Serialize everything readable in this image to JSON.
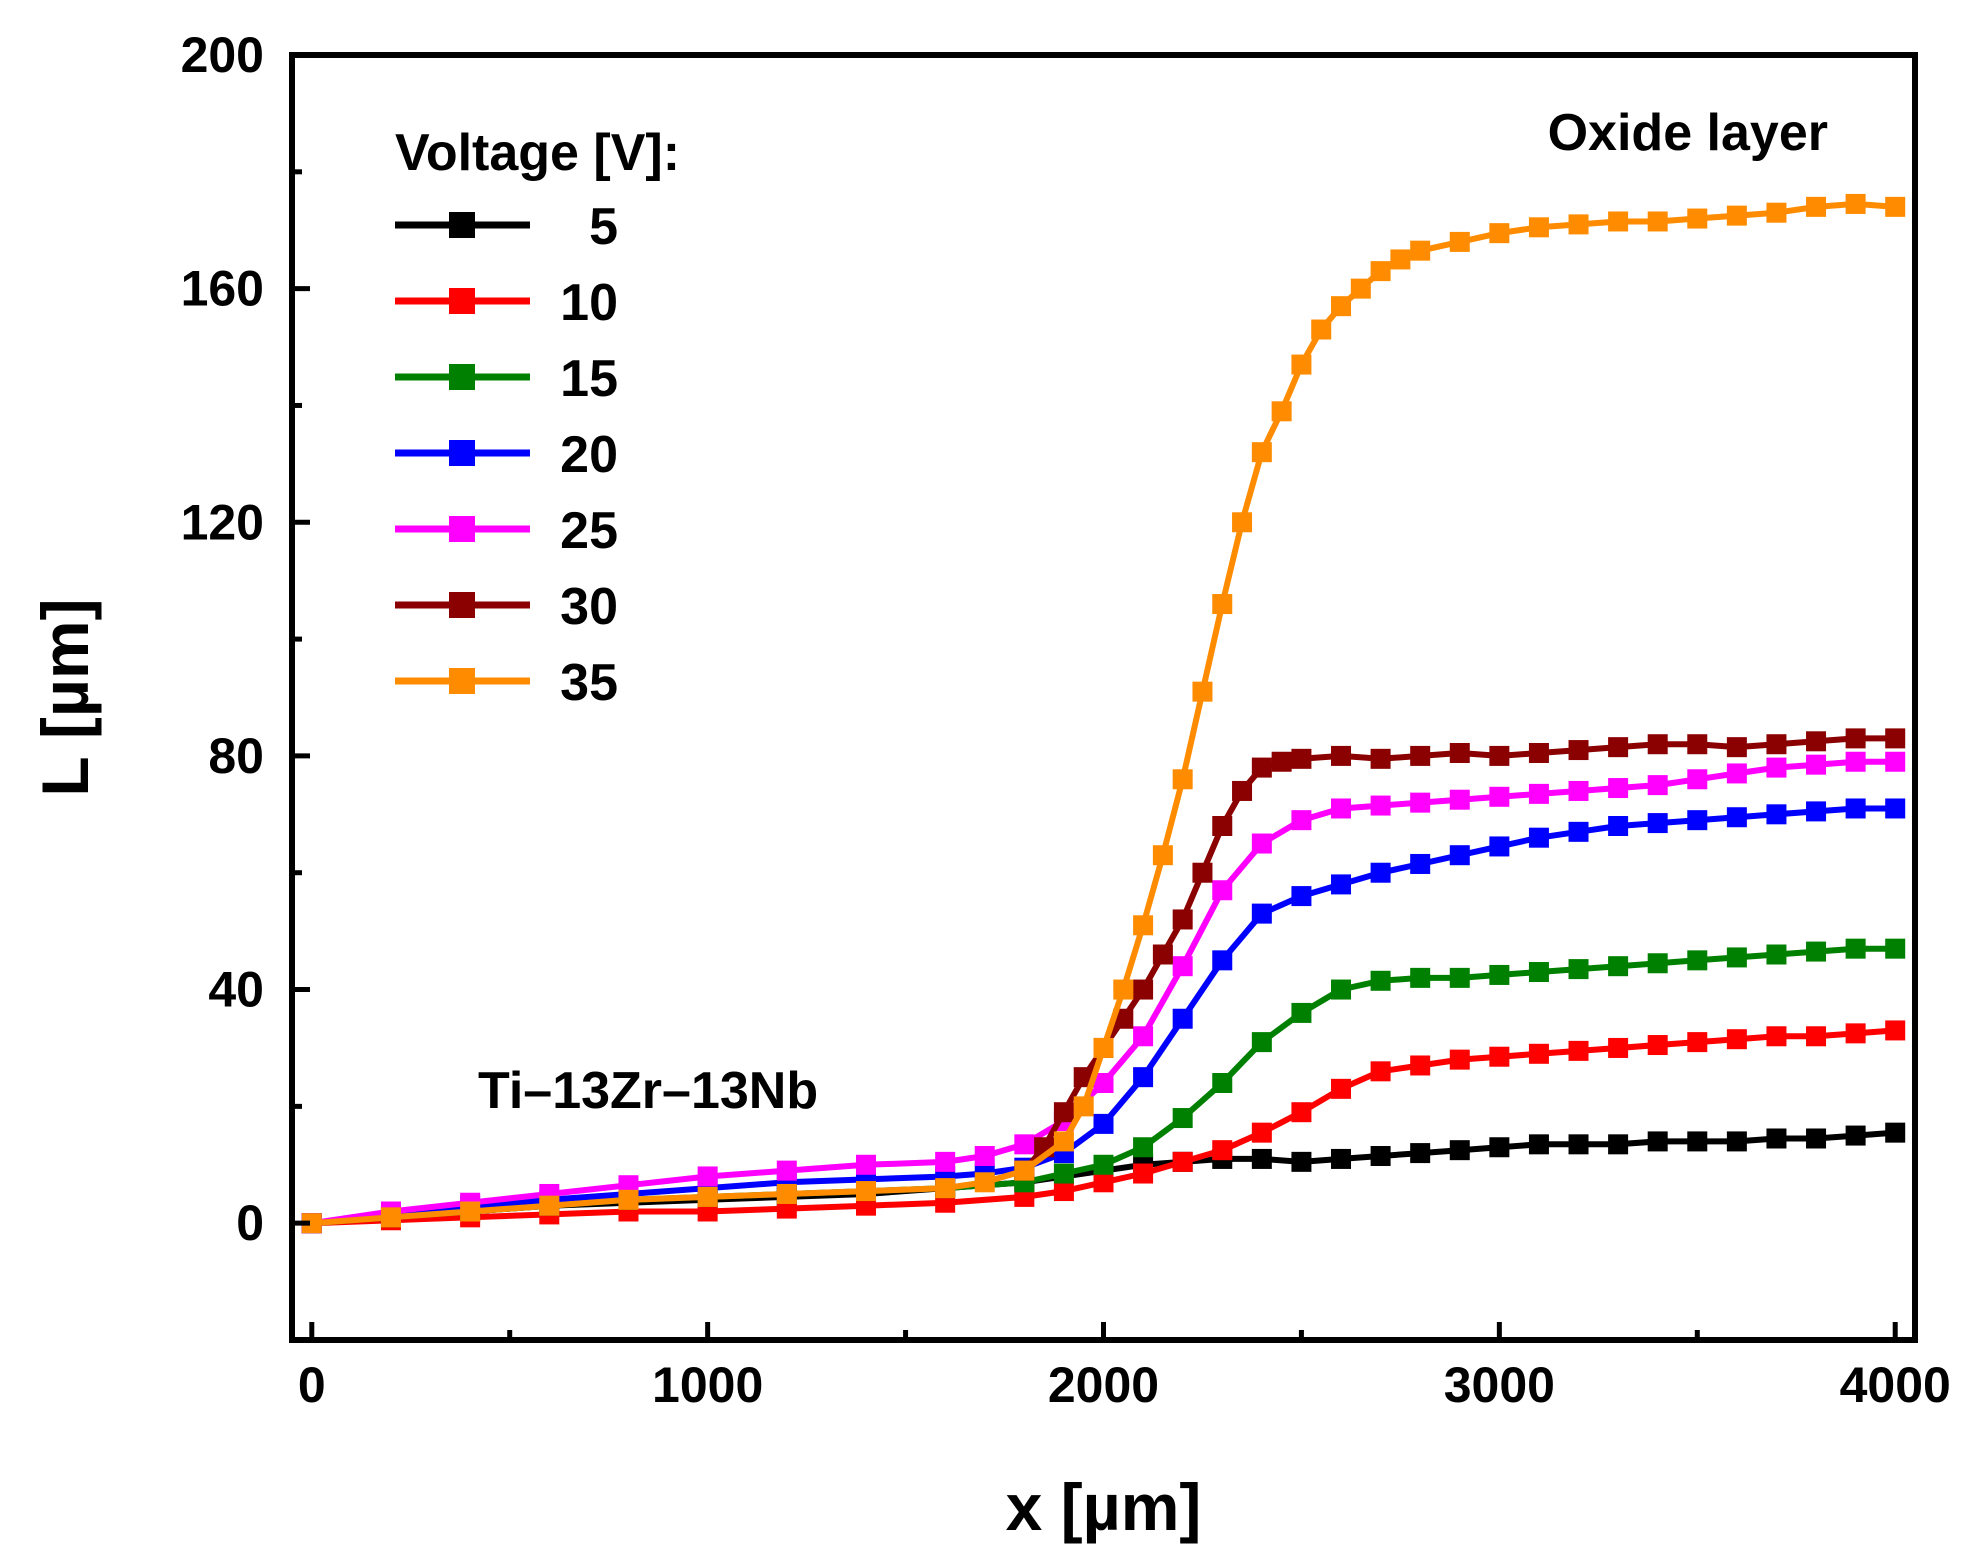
{
  "chart_data": {
    "type": "line",
    "title": "",
    "xlabel": "x [µm]",
    "ylabel": "L [µm]",
    "xlim": [
      -50,
      4050
    ],
    "ylim": [
      -20,
      200
    ],
    "xticks": [
      0,
      1000,
      2000,
      3000,
      4000
    ],
    "yticks": [
      0,
      40,
      80,
      120,
      160,
      200
    ],
    "grid": false,
    "legend": {
      "title": "Voltage [V]:",
      "placement": "top-left"
    },
    "annotations": {
      "top_right": "Oxide layer",
      "bottom_left": "Ti–13Zr–13Nb"
    },
    "series": [
      {
        "name": "5",
        "label": "5",
        "color": "#000000",
        "points": [
          [
            0,
            0
          ],
          [
            200,
            1
          ],
          [
            400,
            2
          ],
          [
            600,
            3
          ],
          [
            800,
            3.5
          ],
          [
            1000,
            4
          ],
          [
            1200,
            4.5
          ],
          [
            1400,
            5
          ],
          [
            1600,
            6
          ],
          [
            1800,
            7
          ],
          [
            2000,
            9
          ],
          [
            2100,
            10
          ],
          [
            2200,
            10.5
          ],
          [
            2300,
            11
          ],
          [
            2400,
            11
          ],
          [
            2500,
            10.5
          ],
          [
            2600,
            11
          ],
          [
            2700,
            11.5
          ],
          [
            2800,
            12
          ],
          [
            2900,
            12.5
          ],
          [
            3000,
            13
          ],
          [
            3100,
            13.5
          ],
          [
            3200,
            13.5
          ],
          [
            3300,
            13.5
          ],
          [
            3400,
            14
          ],
          [
            3500,
            14
          ],
          [
            3600,
            14
          ],
          [
            3700,
            14.5
          ],
          [
            3800,
            14.5
          ],
          [
            3900,
            15
          ],
          [
            4000,
            15.5
          ]
        ]
      },
      {
        "name": "10",
        "label": "10",
        "color": "#ff0000",
        "points": [
          [
            0,
            0
          ],
          [
            200,
            0.5
          ],
          [
            400,
            1
          ],
          [
            600,
            1.5
          ],
          [
            800,
            2
          ],
          [
            1000,
            2
          ],
          [
            1200,
            2.5
          ],
          [
            1400,
            3
          ],
          [
            1600,
            3.5
          ],
          [
            1800,
            4.5
          ],
          [
            1900,
            5.5
          ],
          [
            2000,
            7
          ],
          [
            2100,
            8.5
          ],
          [
            2200,
            10.5
          ],
          [
            2300,
            12.5
          ],
          [
            2400,
            15.5
          ],
          [
            2500,
            19
          ],
          [
            2600,
            23
          ],
          [
            2700,
            26
          ],
          [
            2800,
            27
          ],
          [
            2900,
            28
          ],
          [
            3000,
            28.5
          ],
          [
            3100,
            29
          ],
          [
            3200,
            29.5
          ],
          [
            3300,
            30
          ],
          [
            3400,
            30.5
          ],
          [
            3500,
            31
          ],
          [
            3600,
            31.5
          ],
          [
            3700,
            32
          ],
          [
            3800,
            32
          ],
          [
            3900,
            32.5
          ],
          [
            4000,
            33
          ]
        ]
      },
      {
        "name": "15",
        "label": "15",
        "color": "#008000",
        "points": [
          [
            0,
            0
          ],
          [
            200,
            1
          ],
          [
            400,
            2
          ],
          [
            600,
            3
          ],
          [
            800,
            4
          ],
          [
            1000,
            4.5
          ],
          [
            1200,
            5
          ],
          [
            1400,
            5.5
          ],
          [
            1600,
            6
          ],
          [
            1800,
            7
          ],
          [
            1900,
            8.5
          ],
          [
            2000,
            10
          ],
          [
            2100,
            13
          ],
          [
            2200,
            18
          ],
          [
            2300,
            24
          ],
          [
            2400,
            31
          ],
          [
            2500,
            36
          ],
          [
            2600,
            40
          ],
          [
            2700,
            41.5
          ],
          [
            2800,
            42
          ],
          [
            2900,
            42
          ],
          [
            3000,
            42.5
          ],
          [
            3100,
            43
          ],
          [
            3200,
            43.5
          ],
          [
            3300,
            44
          ],
          [
            3400,
            44.5
          ],
          [
            3500,
            45
          ],
          [
            3600,
            45.5
          ],
          [
            3700,
            46
          ],
          [
            3800,
            46.5
          ],
          [
            3900,
            47
          ],
          [
            4000,
            47
          ]
        ]
      },
      {
        "name": "20",
        "label": "20",
        "color": "#0000ff",
        "points": [
          [
            0,
            0
          ],
          [
            200,
            1.5
          ],
          [
            400,
            3
          ],
          [
            600,
            4
          ],
          [
            800,
            5
          ],
          [
            1000,
            6
          ],
          [
            1200,
            7
          ],
          [
            1400,
            7.5
          ],
          [
            1600,
            8
          ],
          [
            1700,
            8.5
          ],
          [
            1800,
            9.5
          ],
          [
            1900,
            12
          ],
          [
            2000,
            17
          ],
          [
            2100,
            25
          ],
          [
            2200,
            35
          ],
          [
            2300,
            45
          ],
          [
            2400,
            53
          ],
          [
            2500,
            56
          ],
          [
            2600,
            58
          ],
          [
            2700,
            60
          ],
          [
            2800,
            61.5
          ],
          [
            2900,
            63
          ],
          [
            3000,
            64.5
          ],
          [
            3100,
            66
          ],
          [
            3200,
            67
          ],
          [
            3300,
            68
          ],
          [
            3400,
            68.5
          ],
          [
            3500,
            69
          ],
          [
            3600,
            69.5
          ],
          [
            3700,
            70
          ],
          [
            3800,
            70.5
          ],
          [
            3900,
            71
          ],
          [
            4000,
            71
          ]
        ]
      },
      {
        "name": "25",
        "label": "25",
        "color": "#ff00ff",
        "points": [
          [
            0,
            0
          ],
          [
            200,
            2
          ],
          [
            400,
            3.5
          ],
          [
            600,
            5
          ],
          [
            800,
            6.5
          ],
          [
            1000,
            8
          ],
          [
            1200,
            9
          ],
          [
            1400,
            10
          ],
          [
            1600,
            10.5
          ],
          [
            1700,
            11.5
          ],
          [
            1800,
            13.5
          ],
          [
            1900,
            17.5
          ],
          [
            2000,
            24
          ],
          [
            2100,
            32
          ],
          [
            2200,
            44
          ],
          [
            2300,
            57
          ],
          [
            2400,
            65
          ],
          [
            2500,
            69
          ],
          [
            2600,
            71
          ],
          [
            2700,
            71.5
          ],
          [
            2800,
            72
          ],
          [
            2900,
            72.5
          ],
          [
            3000,
            73
          ],
          [
            3100,
            73.5
          ],
          [
            3200,
            74
          ],
          [
            3300,
            74.5
          ],
          [
            3400,
            75
          ],
          [
            3500,
            76
          ],
          [
            3600,
            77
          ],
          [
            3700,
            78
          ],
          [
            3800,
            78.5
          ],
          [
            3900,
            79
          ],
          [
            4000,
            79
          ]
        ]
      },
      {
        "name": "30",
        "label": "30",
        "color": "#8b0000",
        "points": [
          [
            1800,
            9
          ],
          [
            1850,
            13
          ],
          [
            1900,
            19
          ],
          [
            1950,
            25
          ],
          [
            2000,
            30
          ],
          [
            2050,
            35
          ],
          [
            2100,
            40
          ],
          [
            2150,
            46
          ],
          [
            2200,
            52
          ],
          [
            2250,
            60
          ],
          [
            2300,
            68
          ],
          [
            2350,
            74
          ],
          [
            2400,
            78
          ],
          [
            2450,
            79
          ],
          [
            2500,
            79.5
          ],
          [
            2600,
            80
          ],
          [
            2700,
            79.5
          ],
          [
            2800,
            80
          ],
          [
            2900,
            80.5
          ],
          [
            3000,
            80
          ],
          [
            3100,
            80.5
          ],
          [
            3200,
            81
          ],
          [
            3300,
            81.5
          ],
          [
            3400,
            82
          ],
          [
            3500,
            82
          ],
          [
            3600,
            81.5
          ],
          [
            3700,
            82
          ],
          [
            3800,
            82.5
          ],
          [
            3900,
            83
          ],
          [
            4000,
            83
          ]
        ]
      },
      {
        "name": "35",
        "label": "35",
        "color": "#ff8c00",
        "points": [
          [
            0,
            0
          ],
          [
            200,
            1
          ],
          [
            400,
            2
          ],
          [
            600,
            3
          ],
          [
            800,
            4
          ],
          [
            1000,
            4.5
          ],
          [
            1200,
            5
          ],
          [
            1400,
            5.5
          ],
          [
            1600,
            6
          ],
          [
            1700,
            7
          ],
          [
            1800,
            9
          ],
          [
            1900,
            14
          ],
          [
            1950,
            20
          ],
          [
            2000,
            30
          ],
          [
            2050,
            40
          ],
          [
            2100,
            51
          ],
          [
            2150,
            63
          ],
          [
            2200,
            76
          ],
          [
            2250,
            91
          ],
          [
            2300,
            106
          ],
          [
            2350,
            120
          ],
          [
            2400,
            132
          ],
          [
            2450,
            139
          ],
          [
            2500,
            147
          ],
          [
            2550,
            153
          ],
          [
            2600,
            157
          ],
          [
            2650,
            160
          ],
          [
            2700,
            163
          ],
          [
            2750,
            165
          ],
          [
            2800,
            166.5
          ],
          [
            2900,
            168
          ],
          [
            3000,
            169.5
          ],
          [
            3100,
            170.5
          ],
          [
            3200,
            171
          ],
          [
            3300,
            171.5
          ],
          [
            3400,
            171.5
          ],
          [
            3500,
            172
          ],
          [
            3600,
            172.5
          ],
          [
            3700,
            173
          ],
          [
            3800,
            174
          ],
          [
            3900,
            174.5
          ],
          [
            4000,
            174
          ]
        ]
      }
    ]
  }
}
